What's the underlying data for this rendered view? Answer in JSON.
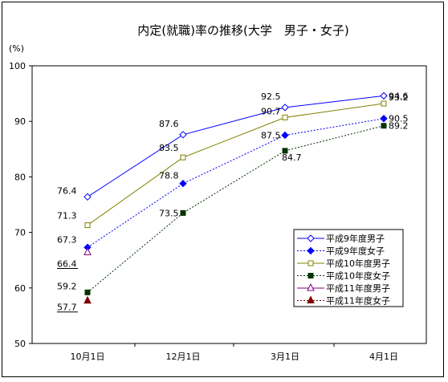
{
  "chart_data": {
    "type": "line",
    "title": "内定(就職)率の推移(大学　男子・女子)",
    "ylabel": "(%)",
    "xlabel": "",
    "ylim": [
      50,
      100
    ],
    "yticks": [
      50,
      60,
      70,
      80,
      90,
      100
    ],
    "categories": [
      "10月1日",
      "12月1日",
      "3月1日",
      "4月1日"
    ],
    "grid": false,
    "legend_position": "bottom-right",
    "series": [
      {
        "name": "平成9年度男子",
        "values": [
          76.4,
          87.6,
          92.5,
          94.6
        ],
        "color": "#0000ff",
        "dash": "solid",
        "marker": "diamond-open"
      },
      {
        "name": "平成9年度女子",
        "values": [
          67.3,
          78.8,
          87.5,
          90.5
        ],
        "color": "#0000ff",
        "dash": "dotted",
        "marker": "diamond-filled"
      },
      {
        "name": "平成10年度男子",
        "values": [
          71.3,
          83.5,
          90.7,
          93.2
        ],
        "color": "#808000",
        "dash": "solid",
        "marker": "square-open"
      },
      {
        "name": "平成10年度女子",
        "values": [
          59.2,
          73.5,
          84.7,
          89.2
        ],
        "color": "#003300",
        "dash": "dotted",
        "marker": "square-filled"
      },
      {
        "name": "平成11年度男子",
        "values": [
          66.4,
          null,
          null,
          null
        ],
        "color": "#800080",
        "dash": "solid",
        "marker": "triangle-open"
      },
      {
        "name": "平成11年度女子",
        "values": [
          57.7,
          null,
          null,
          null
        ],
        "color": "#800000",
        "dash": "dotted",
        "marker": "triangle-filled"
      }
    ]
  }
}
